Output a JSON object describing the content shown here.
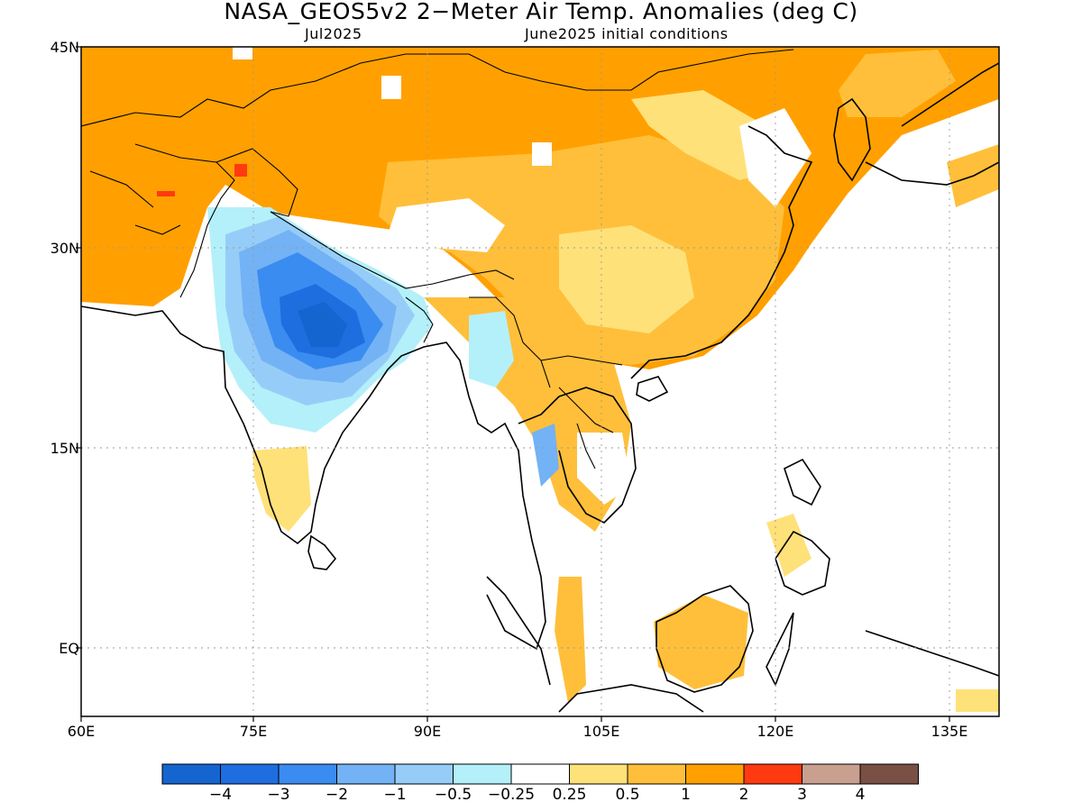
{
  "map": {
    "title": "NASA_GEOS5v2 2−Meter Air Temp. Anomalies (deg C)",
    "subtitle_left": "Jul2025",
    "subtitle_right": "June2025 initial conditions",
    "lat_labels": [
      "45N",
      "30N",
      "15N",
      "EQ"
    ],
    "lon_labels": [
      "60E",
      "75E",
      "90E",
      "105E",
      "120E",
      "135E"
    ],
    "legend": {
      "colors": [
        "#1565d0",
        "#1e6ee0",
        "#3a8cf0",
        "#73b2f5",
        "#96cdf8",
        "#b4f0fa",
        "#ffffff",
        "#ffe17a",
        "#ffbf3a",
        "#ffa000",
        "#ff3a10",
        "#c9a090",
        "#7a5044"
      ],
      "labels": [
        "−4",
        "−3",
        "−2",
        "−1",
        "−0.5",
        "−0.25",
        "0.25",
        "0.5",
        "1",
        "2",
        "3",
        "4"
      ]
    }
  }
}
